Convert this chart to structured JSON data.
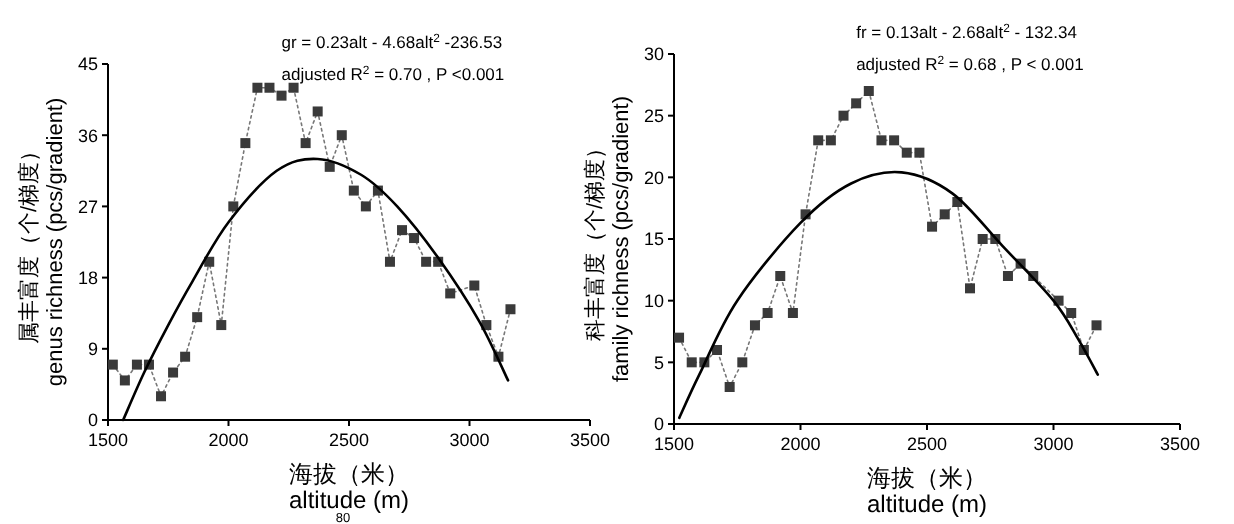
{
  "chart_data": [
    {
      "type": "line",
      "xlabel": "海拔（米）\naltitude (m)",
      "ylabel": "属丰富度（个/梯度）\ngenus richness (pcs/gradient)",
      "xlim": [
        1500,
        3500
      ],
      "xticks": [
        1500,
        2000,
        2500,
        3000,
        3500
      ],
      "ylim": [
        0,
        45
      ],
      "yticks": [
        0,
        9,
        18,
        27,
        36,
        45
      ],
      "series": [
        {
          "type": "line",
          "color": "#3a3a3a",
          "marker": "square",
          "line_style": "dotted",
          "x": [
            1520,
            1570,
            1620,
            1670,
            1720,
            1770,
            1820,
            1870,
            1920,
            1970,
            2020,
            2070,
            2120,
            2170,
            2220,
            2270,
            2320,
            2370,
            2420,
            2470,
            2520,
            2570,
            2620,
            2670,
            2720,
            2770,
            2820,
            2870,
            2920,
            3020,
            3070,
            3120,
            3170
          ],
          "values": [
            7,
            5,
            7,
            7,
            3,
            6,
            8,
            13,
            20,
            12,
            27,
            35,
            42,
            42,
            41,
            42,
            35,
            39,
            32,
            36,
            29,
            27,
            29,
            20,
            24,
            23,
            20,
            20,
            16,
            17,
            12,
            8,
            14
          ]
        },
        {
          "type": "line",
          "color": "#000000",
          "marker": "none",
          "line_style": "solid",
          "x": [
            1563,
            1650,
            1750,
            1850,
            2000,
            2200,
            2370,
            2550,
            2700,
            2870,
            3040,
            3160
          ],
          "values": [
            0,
            6,
            12,
            17.5,
            25,
            31.5,
            33,
            31,
            27,
            20.5,
            12.5,
            5
          ]
        }
      ],
      "annotations": [
        "gr = 0.23alt - 4.68alt$^{2}$ -236.53",
        "adjusted R$^{2}$ = 0.70 , P <0.001",
        "80"
      ]
    },
    {
      "type": "line",
      "xlabel": "海拔（米）\naltitude (m)",
      "ylabel": "科丰富度（个/梯度）\nfamily richness (pcs/gradient)",
      "xlim": [
        1500,
        3500
      ],
      "xticks": [
        1500,
        2000,
        2500,
        3000,
        3500
      ],
      "ylim": [
        0,
        30
      ],
      "yticks": [
        0,
        5,
        10,
        15,
        20,
        25,
        30
      ],
      "series": [
        {
          "type": "line",
          "color": "#3a3a3a",
          "marker": "square",
          "line_style": "dotted",
          "x": [
            1520,
            1570,
            1620,
            1670,
            1720,
            1770,
            1820,
            1870,
            1920,
            1970,
            2020,
            2070,
            2120,
            2170,
            2220,
            2270,
            2320,
            2370,
            2420,
            2470,
            2520,
            2570,
            2620,
            2670,
            2720,
            2770,
            2820,
            2870,
            2920,
            3020,
            3070,
            3120,
            3170
          ],
          "values": [
            7,
            5,
            5,
            6,
            3,
            5,
            8,
            9,
            12,
            9,
            17,
            23,
            23,
            25,
            26,
            27,
            23,
            23,
            22,
            22,
            16,
            17,
            18,
            11,
            15,
            15,
            12,
            13,
            12,
            10,
            9,
            6,
            8
          ]
        },
        {
          "type": "line",
          "color": "#000000",
          "marker": "none",
          "line_style": "solid",
          "x": [
            1521,
            1600,
            1750,
            2000,
            2200,
            2400,
            2600,
            2800,
            3000,
            3100,
            3175
          ],
          "values": [
            0.5,
            4,
            10,
            16.3,
            19.5,
            20.4,
            18.7,
            14.4,
            10,
            6.8,
            4
          ]
        }
      ],
      "annotations": [
        "fr = 0.13alt - 2.68alt$^{2}$ - 132.34",
        "adjusted R$^{2}$ = 0.68 , P < 0.001"
      ]
    }
  ]
}
